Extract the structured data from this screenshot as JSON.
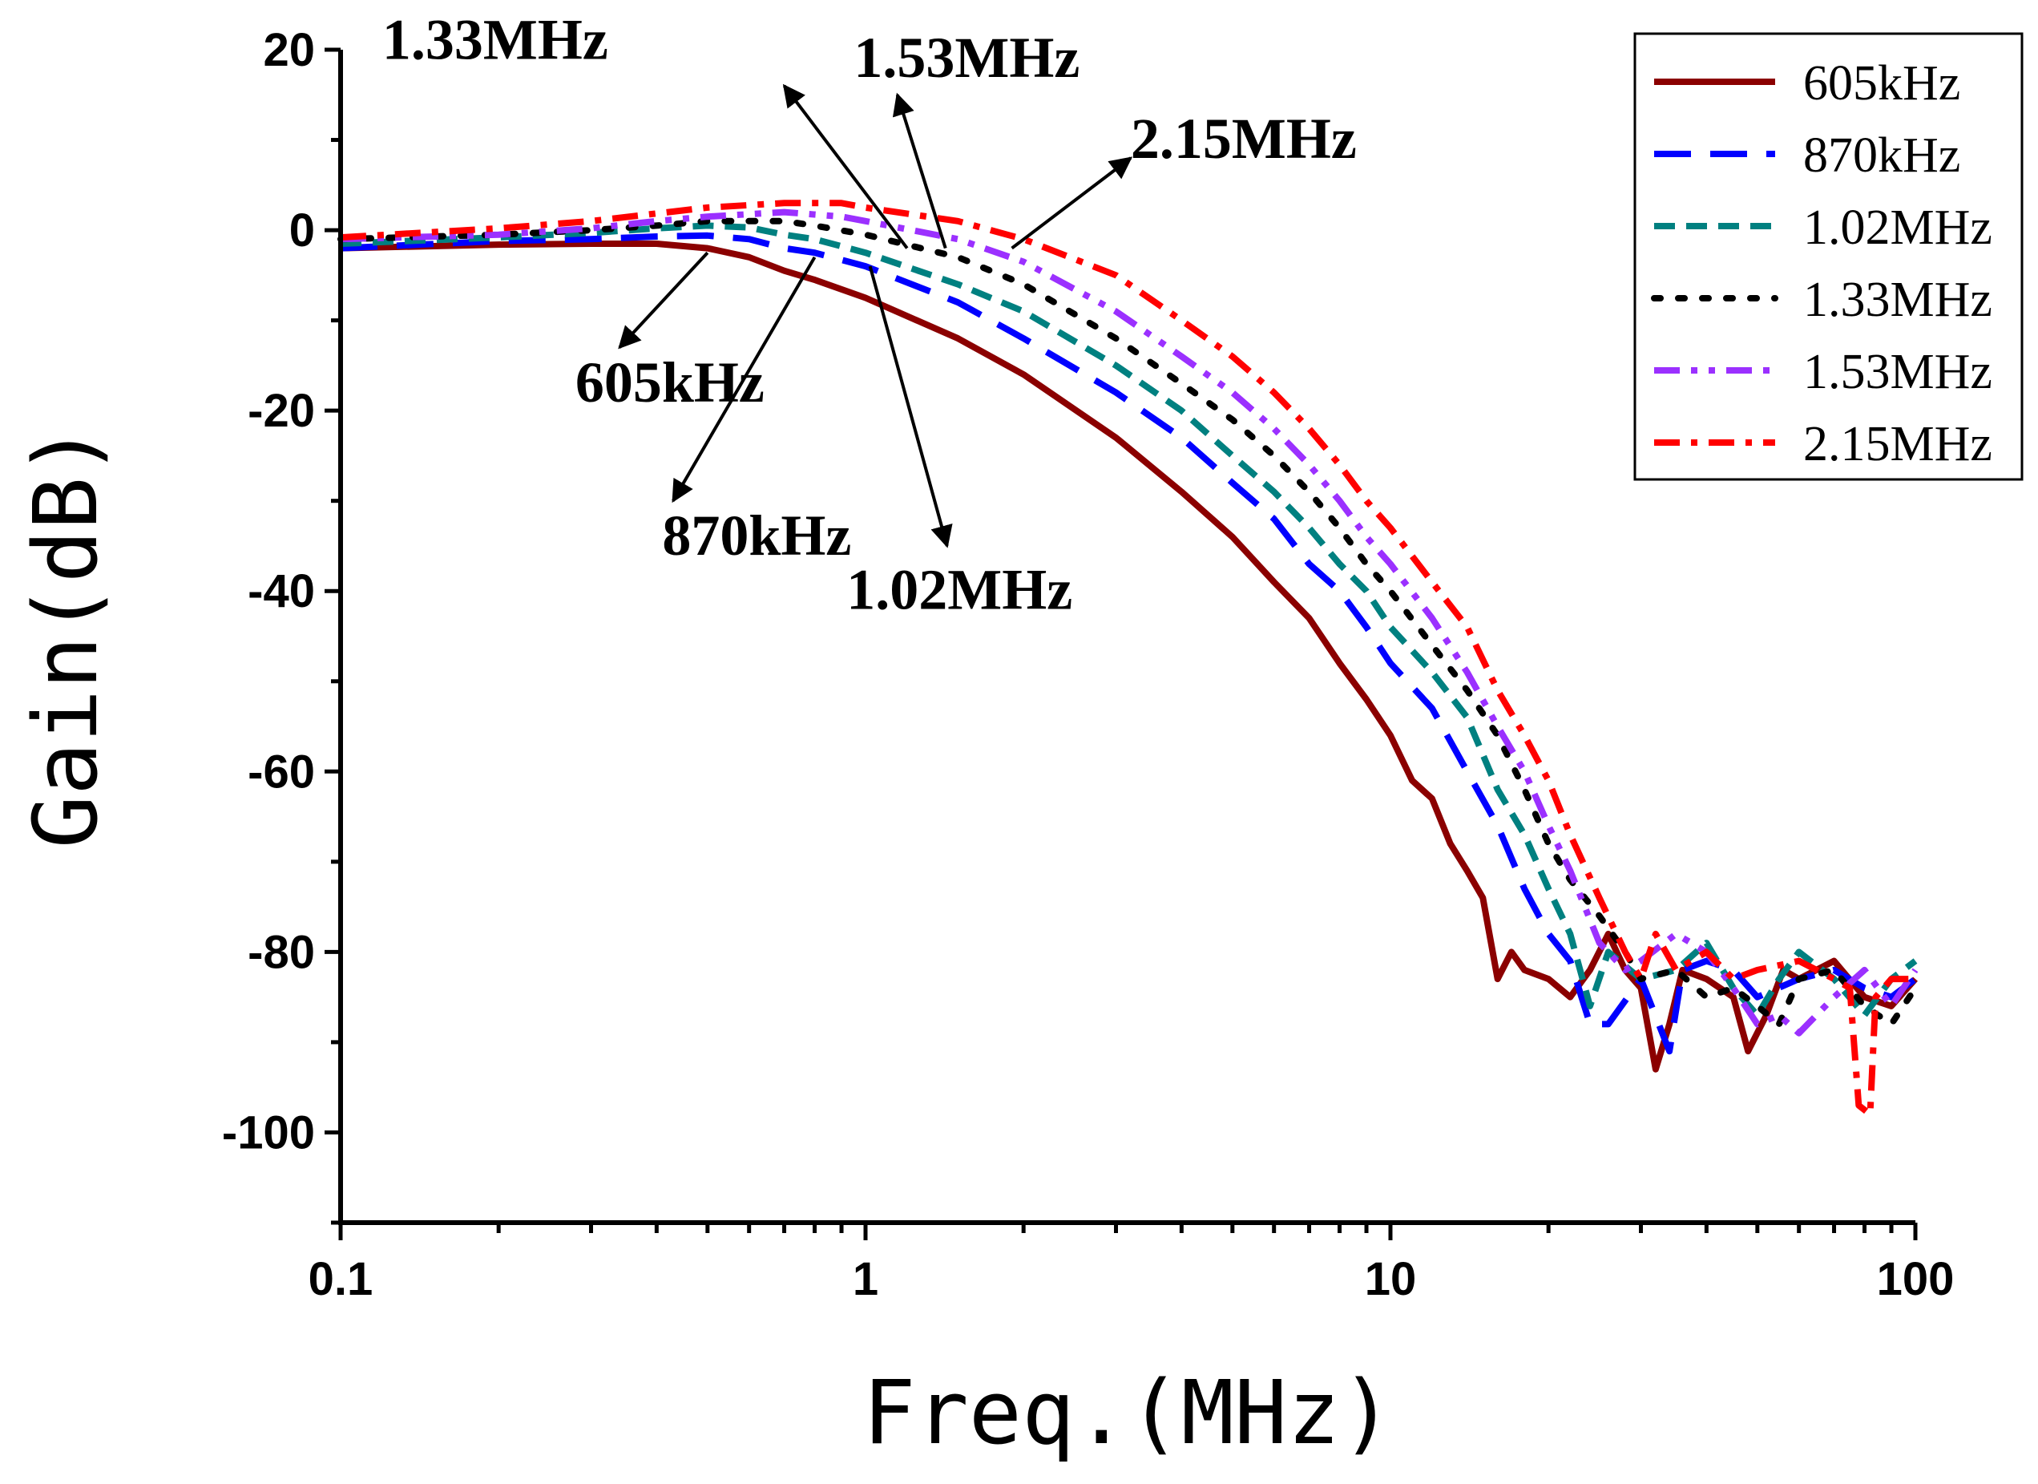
{
  "chart_data": {
    "type": "line",
    "title": "",
    "xlabel": "Freq.(MHz)",
    "ylabel": "Gain(dB)",
    "xscale": "log",
    "xlim": [
      0.1,
      100
    ],
    "ylim": [
      -110,
      20
    ],
    "xticks": [
      0.1,
      1,
      10,
      100
    ],
    "xtick_labels": [
      "0.1",
      "1",
      "10",
      "100"
    ],
    "yticks": [
      20,
      0,
      -20,
      -40,
      -60,
      -80,
      -100
    ],
    "ytick_labels": [
      "20",
      "0",
      "-20",
      "-40",
      "-60",
      "-80",
      "-100"
    ],
    "grid": false,
    "legend_position": "top-right",
    "series": [
      {
        "name": "605kHz",
        "color": "#8b0000",
        "dash": "solid",
        "points": [
          [
            0.1,
            -2
          ],
          [
            0.2,
            -1.6
          ],
          [
            0.3,
            -1.5
          ],
          [
            0.4,
            -1.5
          ],
          [
            0.5,
            -2
          ],
          [
            0.6,
            -3
          ],
          [
            0.7,
            -4.5
          ],
          [
            0.8,
            -5.5
          ],
          [
            1,
            -7.5
          ],
          [
            1.5,
            -12
          ],
          [
            2,
            -16
          ],
          [
            3,
            -23
          ],
          [
            4,
            -29
          ],
          [
            5,
            -34
          ],
          [
            6,
            -39
          ],
          [
            7,
            -43
          ],
          [
            8,
            -48
          ],
          [
            9,
            -52
          ],
          [
            10,
            -56
          ],
          [
            11,
            -61
          ],
          [
            12,
            -63
          ],
          [
            13,
            -68
          ],
          [
            14,
            -71
          ],
          [
            15,
            -74
          ],
          [
            16,
            -83
          ],
          [
            17,
            -80
          ],
          [
            18,
            -82
          ],
          [
            20,
            -83
          ],
          [
            22,
            -85
          ],
          [
            24,
            -82
          ],
          [
            26,
            -78
          ],
          [
            28,
            -82
          ],
          [
            30,
            -84
          ],
          [
            32,
            -93
          ],
          [
            34,
            -88
          ],
          [
            36,
            -82
          ],
          [
            40,
            -83
          ],
          [
            45,
            -85
          ],
          [
            48,
            -91
          ],
          [
            52,
            -87
          ],
          [
            56,
            -82
          ],
          [
            60,
            -83
          ],
          [
            70,
            -81
          ],
          [
            80,
            -85
          ],
          [
            90,
            -86
          ],
          [
            100,
            -83
          ]
        ]
      },
      {
        "name": "870kHz",
        "color": "#0000ff",
        "dash": "long-dash",
        "points": [
          [
            0.1,
            -2
          ],
          [
            0.2,
            -1.2
          ],
          [
            0.3,
            -1
          ],
          [
            0.4,
            -0.7
          ],
          [
            0.5,
            -0.6
          ],
          [
            0.6,
            -1
          ],
          [
            0.7,
            -2
          ],
          [
            0.8,
            -2.5
          ],
          [
            1,
            -4
          ],
          [
            1.5,
            -8
          ],
          [
            2,
            -12
          ],
          [
            3,
            -18
          ],
          [
            4,
            -23
          ],
          [
            5,
            -28
          ],
          [
            6,
            -32
          ],
          [
            7,
            -37
          ],
          [
            8,
            -40
          ],
          [
            9,
            -44
          ],
          [
            10,
            -48
          ],
          [
            12,
            -53
          ],
          [
            14,
            -60
          ],
          [
            16,
            -66
          ],
          [
            18,
            -73
          ],
          [
            20,
            -78
          ],
          [
            22,
            -81
          ],
          [
            24,
            -88
          ],
          [
            26,
            -88
          ],
          [
            30,
            -83
          ],
          [
            34,
            -91
          ],
          [
            36,
            -82
          ],
          [
            40,
            -81
          ],
          [
            45,
            -82
          ],
          [
            50,
            -85
          ],
          [
            60,
            -83
          ],
          [
            70,
            -82
          ],
          [
            80,
            -84
          ],
          [
            90,
            -85
          ],
          [
            100,
            -83
          ]
        ]
      },
      {
        "name": "1.02MHz",
        "color": "#008080",
        "dash": "medium-dash",
        "points": [
          [
            0.1,
            -1.5
          ],
          [
            0.2,
            -0.8
          ],
          [
            0.3,
            -0.3
          ],
          [
            0.4,
            0.2
          ],
          [
            0.5,
            0.5
          ],
          [
            0.6,
            0.3
          ],
          [
            0.7,
            -0.5
          ],
          [
            0.8,
            -1
          ],
          [
            1,
            -2.5
          ],
          [
            1.5,
            -6
          ],
          [
            2,
            -9
          ],
          [
            3,
            -15
          ],
          [
            4,
            -20
          ],
          [
            5,
            -25
          ],
          [
            6,
            -29
          ],
          [
            7,
            -33
          ],
          [
            8,
            -37
          ],
          [
            9,
            -40
          ],
          [
            10,
            -44
          ],
          [
            12,
            -49
          ],
          [
            14,
            -54
          ],
          [
            16,
            -62
          ],
          [
            18,
            -67
          ],
          [
            20,
            -73
          ],
          [
            22,
            -78
          ],
          [
            24,
            -86
          ],
          [
            26,
            -80
          ],
          [
            30,
            -83
          ],
          [
            35,
            -82
          ],
          [
            40,
            -79
          ],
          [
            45,
            -84
          ],
          [
            50,
            -87
          ],
          [
            55,
            -83
          ],
          [
            60,
            -80
          ],
          [
            70,
            -83
          ],
          [
            80,
            -87
          ],
          [
            90,
            -83
          ],
          [
            100,
            -81
          ]
        ]
      },
      {
        "name": "1.33MHz",
        "color": "#000000",
        "dash": "dotted",
        "points": [
          [
            0.1,
            -1
          ],
          [
            0.2,
            -0.5
          ],
          [
            0.3,
            0
          ],
          [
            0.4,
            0.5
          ],
          [
            0.5,
            1
          ],
          [
            0.7,
            1
          ],
          [
            0.8,
            0.5
          ],
          [
            1,
            -0.5
          ],
          [
            1.5,
            -3
          ],
          [
            2,
            -6
          ],
          [
            3,
            -12
          ],
          [
            4,
            -17
          ],
          [
            5,
            -21
          ],
          [
            6,
            -25
          ],
          [
            7,
            -29
          ],
          [
            8,
            -33
          ],
          [
            9,
            -37
          ],
          [
            10,
            -40
          ],
          [
            12,
            -46
          ],
          [
            14,
            -51
          ],
          [
            16,
            -56
          ],
          [
            18,
            -62
          ],
          [
            20,
            -68
          ],
          [
            22,
            -72
          ],
          [
            25,
            -76
          ],
          [
            28,
            -80
          ],
          [
            30,
            -83
          ],
          [
            35,
            -82
          ],
          [
            40,
            -85
          ],
          [
            45,
            -84
          ],
          [
            50,
            -86
          ],
          [
            55,
            -88
          ],
          [
            60,
            -83
          ],
          [
            70,
            -82
          ],
          [
            80,
            -86
          ],
          [
            90,
            -88
          ],
          [
            100,
            -84
          ]
        ]
      },
      {
        "name": "1.53MHz",
        "color": "#9b30ff",
        "dash": "dash-dot-dot",
        "points": [
          [
            0.1,
            -1
          ],
          [
            0.2,
            -0.5
          ],
          [
            0.3,
            0.2
          ],
          [
            0.4,
            1
          ],
          [
            0.5,
            1.5
          ],
          [
            0.7,
            2
          ],
          [
            0.9,
            1.5
          ],
          [
            1,
            1
          ],
          [
            1.5,
            -1
          ],
          [
            2,
            -3.5
          ],
          [
            3,
            -9
          ],
          [
            4,
            -14
          ],
          [
            5,
            -18
          ],
          [
            6,
            -22
          ],
          [
            7,
            -26
          ],
          [
            8,
            -30
          ],
          [
            9,
            -34
          ],
          [
            10,
            -37
          ],
          [
            12,
            -43
          ],
          [
            14,
            -49
          ],
          [
            16,
            -55
          ],
          [
            18,
            -60
          ],
          [
            20,
            -66
          ],
          [
            22,
            -71
          ],
          [
            25,
            -79
          ],
          [
            28,
            -82
          ],
          [
            30,
            -81
          ],
          [
            35,
            -78
          ],
          [
            40,
            -80
          ],
          [
            45,
            -84
          ],
          [
            50,
            -88
          ],
          [
            55,
            -87
          ],
          [
            60,
            -89
          ],
          [
            70,
            -85
          ],
          [
            80,
            -82
          ],
          [
            90,
            -86
          ],
          [
            100,
            -82
          ]
        ]
      },
      {
        "name": "2.15MHz",
        "color": "#ff0000",
        "dash": "dash-dot",
        "points": [
          [
            0.1,
            -0.8
          ],
          [
            0.2,
            0.2
          ],
          [
            0.3,
            1
          ],
          [
            0.5,
            2.5
          ],
          [
            0.7,
            3
          ],
          [
            0.9,
            3
          ],
          [
            1,
            2.5
          ],
          [
            1.5,
            1
          ],
          [
            2,
            -1
          ],
          [
            3,
            -5
          ],
          [
            4,
            -10
          ],
          [
            5,
            -14
          ],
          [
            6,
            -18
          ],
          [
            7,
            -22
          ],
          [
            8,
            -26
          ],
          [
            9,
            -30
          ],
          [
            10,
            -33
          ],
          [
            12,
            -39
          ],
          [
            14,
            -44
          ],
          [
            16,
            -51
          ],
          [
            18,
            -56
          ],
          [
            20,
            -61
          ],
          [
            22,
            -67
          ],
          [
            25,
            -74
          ],
          [
            28,
            -80
          ],
          [
            30,
            -83
          ],
          [
            32,
            -78
          ],
          [
            35,
            -82
          ],
          [
            40,
            -80
          ],
          [
            45,
            -83
          ],
          [
            50,
            -82
          ],
          [
            60,
            -81
          ],
          [
            70,
            -83
          ],
          [
            75,
            -84
          ],
          [
            78,
            -97
          ],
          [
            82,
            -98
          ],
          [
            84,
            -85
          ],
          [
            90,
            -83
          ],
          [
            100,
            -83
          ]
        ]
      }
    ],
    "annotations": [
      {
        "text": "1.33MHz",
        "label_at": [
          0.12,
          19
        ],
        "arrow_from": [
          1.2,
          -2
        ],
        "arrow_to": [
          0.7,
          16
        ]
      },
      {
        "text": "1.53MHz",
        "label_at": [
          0.95,
          17
        ],
        "arrow_from": [
          1.42,
          -2
        ],
        "arrow_to": [
          1.15,
          15
        ]
      },
      {
        "text": "2.15MHz",
        "label_at": [
          3.2,
          8
        ],
        "arrow_from": [
          1.9,
          -2
        ],
        "arrow_to": [
          3.2,
          8
        ]
      },
      {
        "text": "605kHz",
        "label_at": [
          0.28,
          -19
        ],
        "arrow_from": [
          0.5,
          -2.5
        ],
        "arrow_to": [
          0.34,
          -13
        ]
      },
      {
        "text": "870kHz",
        "label_at": [
          0.41,
          -36
        ],
        "arrow_from": [
          0.8,
          -3
        ],
        "arrow_to": [
          0.43,
          -30
        ]
      },
      {
        "text": "1.02MHz",
        "label_at": [
          0.92,
          -42
        ],
        "arrow_from": [
          1.02,
          -4
        ],
        "arrow_to": [
          1.43,
          -35
        ]
      }
    ]
  }
}
